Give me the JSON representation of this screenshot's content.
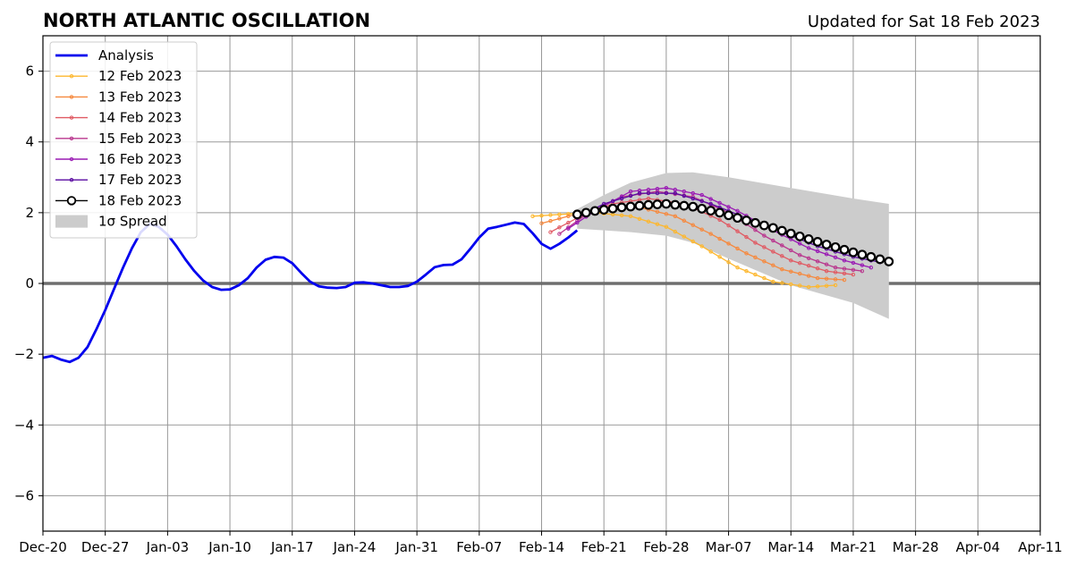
{
  "header": {
    "title": "NORTH ATLANTIC OSCILLATION",
    "updated": "Updated for Sat 18 Feb 2023"
  },
  "colors": {
    "analysis": "#0000ee",
    "spread": "#cccccc",
    "grid": "#999999",
    "zero_line": "#555555"
  },
  "chart_data": {
    "type": "line",
    "title": "NORTH ATLANTIC OSCILLATION",
    "x_axis": {
      "type": "date",
      "range": [
        "2022-12-20",
        "2023-04-11"
      ],
      "ticks": [
        "2022-12-20",
        "2022-12-27",
        "2023-01-03",
        "2023-01-10",
        "2023-01-17",
        "2023-01-24",
        "2023-01-31",
        "2023-02-07",
        "2023-02-14",
        "2023-02-21",
        "2023-02-28",
        "2023-03-07",
        "2023-03-14",
        "2023-03-21",
        "2023-03-28",
        "2023-04-04",
        "2023-04-11"
      ],
      "tick_labels": [
        "Dec-20",
        "Dec-27",
        "Jan-03",
        "Jan-10",
        "Jan-17",
        "Jan-24",
        "Jan-31",
        "Feb-07",
        "Feb-14",
        "Feb-21",
        "Feb-28",
        "Mar-07",
        "Mar-14",
        "Mar-21",
        "Mar-28",
        "Apr-04",
        "Apr-11"
      ]
    },
    "y_axis": {
      "range": [
        -7,
        7
      ],
      "ticks": [
        -6,
        -4,
        -2,
        0,
        2,
        4,
        6
      ],
      "tick_labels": [
        "−6",
        "−4",
        "−2",
        "0",
        "2",
        "4",
        "6"
      ]
    },
    "grid": true,
    "legend_position": "top-left",
    "analysis": {
      "name": "Analysis",
      "color": "#0000ee",
      "points": [
        [
          "2022-12-20",
          -2.1
        ],
        [
          "2022-12-21",
          -2.05
        ],
        [
          "2022-12-22",
          -2.15
        ],
        [
          "2022-12-23",
          -2.22
        ],
        [
          "2022-12-24",
          -2.1
        ],
        [
          "2022-12-25",
          -1.8
        ],
        [
          "2022-12-26",
          -1.3
        ],
        [
          "2022-12-27",
          -0.75
        ],
        [
          "2022-12-28",
          -0.15
        ],
        [
          "2022-12-29",
          0.45
        ],
        [
          "2022-12-30",
          1.0
        ],
        [
          "2022-12-31",
          1.45
        ],
        [
          "2023-01-01",
          1.68
        ],
        [
          "2023-01-02",
          1.6
        ],
        [
          "2023-01-03",
          1.38
        ],
        [
          "2023-01-04",
          1.05
        ],
        [
          "2023-01-05",
          0.68
        ],
        [
          "2023-01-06",
          0.35
        ],
        [
          "2023-01-07",
          0.08
        ],
        [
          "2023-01-08",
          -0.1
        ],
        [
          "2023-01-09",
          -0.18
        ],
        [
          "2023-01-10",
          -0.17
        ],
        [
          "2023-01-11",
          -0.05
        ],
        [
          "2023-01-12",
          0.15
        ],
        [
          "2023-01-13",
          0.45
        ],
        [
          "2023-01-14",
          0.67
        ],
        [
          "2023-01-15",
          0.75
        ],
        [
          "2023-01-16",
          0.73
        ],
        [
          "2023-01-17",
          0.57
        ],
        [
          "2023-01-18",
          0.3
        ],
        [
          "2023-01-19",
          0.05
        ],
        [
          "2023-01-20",
          -0.08
        ],
        [
          "2023-01-21",
          -0.12
        ],
        [
          "2023-01-22",
          -0.13
        ],
        [
          "2023-01-23",
          -0.1
        ],
        [
          "2023-01-24",
          0.02
        ],
        [
          "2023-01-25",
          0.03
        ],
        [
          "2023-01-26",
          0.0
        ],
        [
          "2023-01-27",
          -0.05
        ],
        [
          "2023-01-28",
          -0.1
        ],
        [
          "2023-01-29",
          -0.1
        ],
        [
          "2023-01-30",
          -0.07
        ],
        [
          "2023-01-31",
          0.05
        ],
        [
          "2023-02-01",
          0.25
        ],
        [
          "2023-02-02",
          0.46
        ],
        [
          "2023-02-03",
          0.52
        ],
        [
          "2023-02-04",
          0.53
        ],
        [
          "2023-02-05",
          0.68
        ],
        [
          "2023-02-06",
          0.98
        ],
        [
          "2023-02-07",
          1.3
        ],
        [
          "2023-02-08",
          1.55
        ],
        [
          "2023-02-09",
          1.6
        ],
        [
          "2023-02-10",
          1.66
        ],
        [
          "2023-02-11",
          1.72
        ],
        [
          "2023-02-12",
          1.68
        ],
        [
          "2023-02-13",
          1.42
        ],
        [
          "2023-02-14",
          1.12
        ],
        [
          "2023-02-15",
          0.98
        ],
        [
          "2023-02-16",
          1.12
        ],
        [
          "2023-02-17",
          1.3
        ],
        [
          "2023-02-18",
          1.5
        ]
      ]
    },
    "spread": {
      "name": "1σ Spread",
      "color": "#cccccc",
      "points": [
        [
          "2023-02-18",
          2.1,
          1.55
        ],
        [
          "2023-02-21",
          2.5,
          1.5
        ],
        [
          "2023-02-24",
          2.85,
          1.45
        ],
        [
          "2023-02-28",
          3.12,
          1.35
        ],
        [
          "2023-03-03",
          3.14,
          1.15
        ],
        [
          "2023-03-07",
          3.0,
          0.7
        ],
        [
          "2023-03-14",
          2.7,
          -0.05
        ],
        [
          "2023-03-21",
          2.4,
          -0.55
        ],
        [
          "2023-03-25",
          2.25,
          -1.0
        ]
      ]
    },
    "series": [
      {
        "name": "12 Feb 2023",
        "color": "#fdb72e",
        "start": "2023-02-13",
        "end": "2023-03-19",
        "values": [
          [
            "2023-02-13",
            1.9
          ],
          [
            "2023-02-16",
            1.95
          ],
          [
            "2023-02-20",
            2.0
          ],
          [
            "2023-02-24",
            1.9
          ],
          [
            "2023-02-28",
            1.6
          ],
          [
            "2023-03-04",
            1.05
          ],
          [
            "2023-03-08",
            0.45
          ],
          [
            "2023-03-12",
            0.05
          ],
          [
            "2023-03-16",
            -0.1
          ],
          [
            "2023-03-19",
            -0.05
          ]
        ]
      },
      {
        "name": "13 Feb 2023",
        "color": "#f6893e",
        "start": "2023-02-14",
        "end": "2023-03-20",
        "values": [
          [
            "2023-02-14",
            1.7
          ],
          [
            "2023-02-17",
            1.9
          ],
          [
            "2023-02-21",
            2.1
          ],
          [
            "2023-02-25",
            2.15
          ],
          [
            "2023-03-01",
            1.9
          ],
          [
            "2023-03-05",
            1.4
          ],
          [
            "2023-03-09",
            0.85
          ],
          [
            "2023-03-13",
            0.4
          ],
          [
            "2023-03-17",
            0.15
          ],
          [
            "2023-03-20",
            0.1
          ]
        ]
      },
      {
        "name": "14 Feb 2023",
        "color": "#e05a63",
        "start": "2023-02-15",
        "end": "2023-03-21",
        "values": [
          [
            "2023-02-15",
            1.45
          ],
          [
            "2023-02-18",
            1.85
          ],
          [
            "2023-02-22",
            2.25
          ],
          [
            "2023-02-26",
            2.4
          ],
          [
            "2023-03-02",
            2.25
          ],
          [
            "2023-03-06",
            1.8
          ],
          [
            "2023-03-10",
            1.15
          ],
          [
            "2023-03-14",
            0.65
          ],
          [
            "2023-03-18",
            0.35
          ],
          [
            "2023-03-21",
            0.25
          ]
        ]
      },
      {
        "name": "15 Feb 2023",
        "color": "#b9378e",
        "start": "2023-02-16",
        "end": "2023-03-22",
        "values": [
          [
            "2023-02-16",
            1.4
          ],
          [
            "2023-02-19",
            1.95
          ],
          [
            "2023-02-23",
            2.45
          ],
          [
            "2023-02-27",
            2.6
          ],
          [
            "2023-03-03",
            2.45
          ],
          [
            "2023-03-07",
            2.0
          ],
          [
            "2023-03-11",
            1.35
          ],
          [
            "2023-03-15",
            0.8
          ],
          [
            "2023-03-19",
            0.45
          ],
          [
            "2023-03-22",
            0.35
          ]
        ]
      },
      {
        "name": "16 Feb 2023",
        "color": "#9a1ab4",
        "start": "2023-02-17",
        "end": "2023-03-23",
        "values": [
          [
            "2023-02-17",
            1.55
          ],
          [
            "2023-02-20",
            2.05
          ],
          [
            "2023-02-24",
            2.6
          ],
          [
            "2023-02-28",
            2.7
          ],
          [
            "2023-03-04",
            2.5
          ],
          [
            "2023-03-08",
            2.05
          ],
          [
            "2023-03-12",
            1.5
          ],
          [
            "2023-03-16",
            1.0
          ],
          [
            "2023-03-20",
            0.65
          ],
          [
            "2023-03-23",
            0.45
          ]
        ]
      },
      {
        "name": "17 Feb 2023",
        "color": "#5a0aa0",
        "start": "2023-02-18",
        "end": "2023-03-24",
        "values": [
          [
            "2023-02-18",
            1.85
          ],
          [
            "2023-02-21",
            2.25
          ],
          [
            "2023-02-25",
            2.55
          ],
          [
            "2023-03-01",
            2.55
          ],
          [
            "2023-03-05",
            2.25
          ],
          [
            "2023-03-09",
            1.85
          ],
          [
            "2023-03-13",
            1.45
          ],
          [
            "2023-03-17",
            1.05
          ],
          [
            "2023-03-21",
            0.75
          ],
          [
            "2023-03-24",
            0.6
          ]
        ]
      },
      {
        "name": "18 Feb 2023",
        "color": "#000000",
        "start": "2023-02-18",
        "end": "2023-03-25",
        "values": [
          [
            "2023-02-18",
            1.95
          ],
          [
            "2023-02-20",
            2.05
          ],
          [
            "2023-02-23",
            2.15
          ],
          [
            "2023-02-26",
            2.22
          ],
          [
            "2023-02-28",
            2.25
          ],
          [
            "2023-03-03",
            2.17
          ],
          [
            "2023-03-06",
            2.0
          ],
          [
            "2023-03-09",
            1.78
          ],
          [
            "2023-03-12",
            1.57
          ],
          [
            "2023-03-15",
            1.33
          ],
          [
            "2023-03-18",
            1.1
          ],
          [
            "2023-03-21",
            0.88
          ],
          [
            "2023-03-23",
            0.75
          ],
          [
            "2023-03-25",
            0.62
          ]
        ]
      }
    ]
  }
}
